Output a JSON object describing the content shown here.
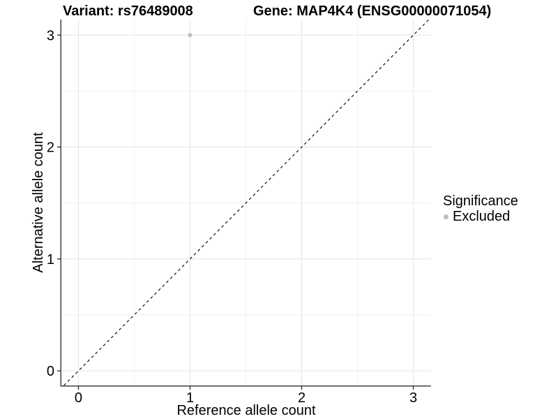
{
  "title": {
    "variant": "Variant: rs76489008",
    "gene": "Gene: MAP4K4 (ENSG00000071054)"
  },
  "chart_data": {
    "type": "scatter",
    "title_left": "Variant: rs76489008",
    "title_right": "Gene: MAP4K4 (ENSG00000071054)",
    "xlabel": "Reference allele count",
    "ylabel": "Alternative allele count",
    "xlim": [
      -0.153,
      3.159
    ],
    "ylim": [
      -0.131,
      3.139
    ],
    "xticks": [
      0,
      1,
      2,
      3
    ],
    "yticks": [
      0,
      1,
      2,
      3
    ],
    "xminor": [
      0.5,
      1.5,
      2.5
    ],
    "yminor": [
      0.5,
      1.5,
      2.5
    ],
    "grid": "on",
    "points": [
      {
        "x": 1,
        "y": 3,
        "series": "Excluded"
      }
    ],
    "reference_line": {
      "type": "identity",
      "equation": "y = x",
      "style": "dashed"
    },
    "legend": {
      "title": "Significance",
      "position": "right",
      "entries": [
        {
          "label": "Excluded",
          "color": "#bdbdbd"
        }
      ]
    }
  },
  "colors": {
    "background": "#ffffff",
    "text": "#000000",
    "point": "#bdbdbd",
    "grid_major": "#e4e4e4",
    "grid_minor": "#f1f1f1",
    "axis_line": "#404040",
    "dashed_line": "#111111"
  }
}
